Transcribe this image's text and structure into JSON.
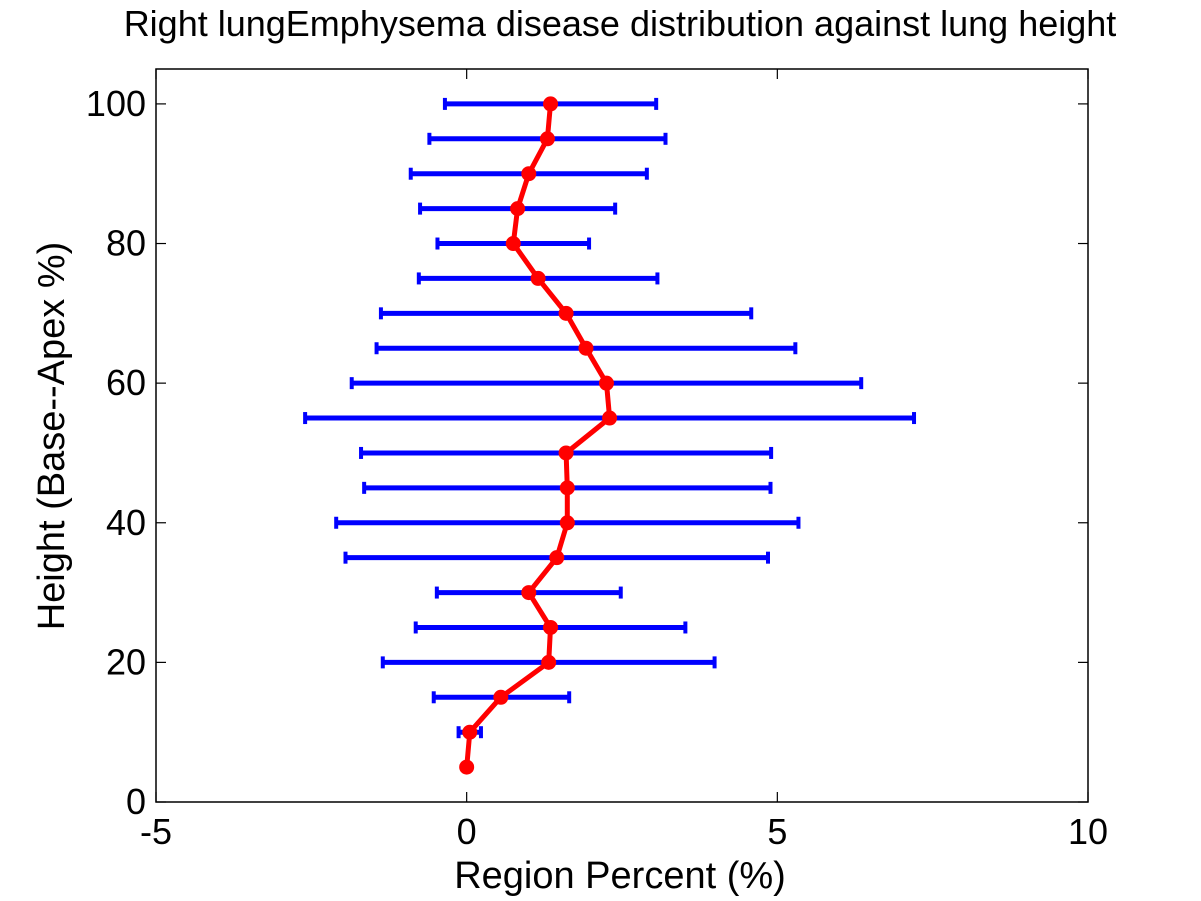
{
  "chart_data": {
    "type": "line",
    "title": "Right lungEmphysema disease distribution against lung height",
    "xlabel": "Region Percent (%)",
    "ylabel": "Height (Base--Apex %)",
    "xlim": [
      -5,
      10
    ],
    "ylim": [
      0,
      105
    ],
    "xticks": [
      "-5",
      "0",
      "5",
      "10"
    ],
    "yticks": [
      "0",
      "20",
      "40",
      "60",
      "80",
      "100"
    ],
    "grid": false,
    "colors": {
      "line": "#ff0000",
      "errorbar": "#0000ff",
      "axes": "#000000"
    },
    "series": [
      {
        "points": [
          {
            "y": 5,
            "x": 0.0,
            "low": 0.0,
            "high": 0.0
          },
          {
            "y": 10,
            "x": 0.05,
            "low": -0.13,
            "high": 0.23
          },
          {
            "y": 15,
            "x": 0.55,
            "low": -0.53,
            "high": 1.65
          },
          {
            "y": 20,
            "x": 1.32,
            "low": -1.35,
            "high": 3.99
          },
          {
            "y": 25,
            "x": 1.35,
            "low": -0.82,
            "high": 3.52
          },
          {
            "y": 30,
            "x": 1.0,
            "low": -0.48,
            "high": 2.48
          },
          {
            "y": 35,
            "x": 1.45,
            "low": -1.95,
            "high": 4.85
          },
          {
            "y": 40,
            "x": 1.62,
            "low": -2.1,
            "high": 5.34
          },
          {
            "y": 45,
            "x": 1.62,
            "low": -1.65,
            "high": 4.89
          },
          {
            "y": 50,
            "x": 1.6,
            "low": -1.7,
            "high": 4.9
          },
          {
            "y": 55,
            "x": 2.3,
            "low": -2.6,
            "high": 7.2
          },
          {
            "y": 60,
            "x": 2.25,
            "low": -1.85,
            "high": 6.35
          },
          {
            "y": 65,
            "x": 1.92,
            "low": -1.45,
            "high": 5.29
          },
          {
            "y": 70,
            "x": 1.6,
            "low": -1.38,
            "high": 4.58
          },
          {
            "y": 75,
            "x": 1.15,
            "low": -0.77,
            "high": 3.07
          },
          {
            "y": 80,
            "x": 0.75,
            "low": -0.47,
            "high": 1.97
          },
          {
            "y": 85,
            "x": 0.82,
            "low": -0.75,
            "high": 2.39
          },
          {
            "y": 90,
            "x": 1.0,
            "low": -0.9,
            "high": 2.9
          },
          {
            "y": 95,
            "x": 1.3,
            "low": -0.6,
            "high": 3.2
          },
          {
            "y": 100,
            "x": 1.35,
            "low": -0.35,
            "high": 3.05
          }
        ]
      }
    ]
  }
}
